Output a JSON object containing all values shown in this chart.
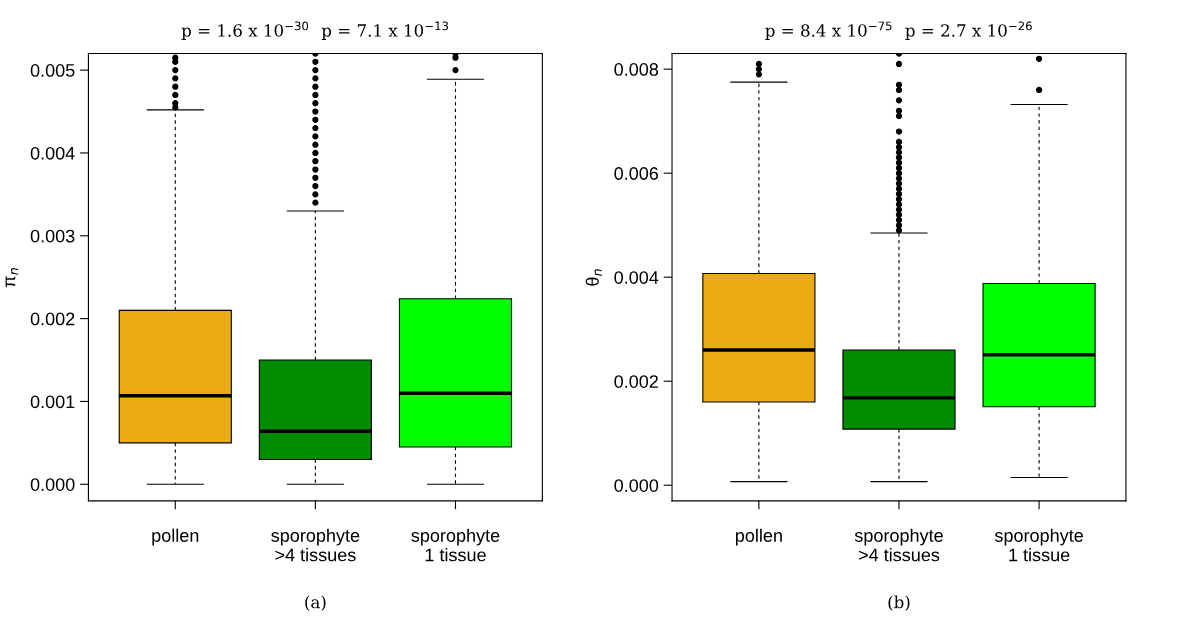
{
  "chart_data": [
    {
      "type": "box",
      "ylabel": "π$_{n}$",
      "xlabel": "(a)",
      "categories": [
        "pollen",
        "sporophyte\n>4 tissues",
        "sporophyte\n1 tissue"
      ],
      "colors": [
        "#ebab13",
        "#008b00",
        "#00ff00"
      ],
      "ylim": [
        -0.0002,
        0.0052
      ],
      "yticks": [
        {
          "value": 0,
          "label": "0.000"
        },
        {
          "value": 0.001,
          "label": "0.001"
        },
        {
          "value": 0.002,
          "label": "0.002"
        },
        {
          "value": 0.003,
          "label": "0.003"
        },
        {
          "value": 0.004,
          "label": "0.004"
        },
        {
          "value": 0.005,
          "label": "0.005"
        }
      ],
      "grid": false,
      "annotations": [
        "p = 1.6 x 10$^{−30}$",
        "p = 7.1 x 10$^{−13}$"
      ],
      "boxes": [
        {
          "low": 0,
          "q1": 0.0005,
          "median": 0.00107,
          "q3": 0.0021,
          "high": 0.00452,
          "outliers": [
            0.00455,
            0.0046,
            0.0047,
            0.0048,
            0.0049,
            0.005,
            0.0051,
            0.00515
          ]
        },
        {
          "low": 0,
          "q1": 0.0003,
          "median": 0.00064,
          "q3": 0.0015,
          "high": 0.0033,
          "outliers": [
            0.0034,
            0.0035,
            0.0036,
            0.0037,
            0.0038,
            0.0039,
            0.004,
            0.0041,
            0.0042,
            0.0043,
            0.0044,
            0.0045,
            0.0046,
            0.0047,
            0.0048,
            0.0049,
            0.005,
            0.0051,
            0.0052
          ]
        },
        {
          "low": 0,
          "q1": 0.00045,
          "median": 0.0011,
          "q3": 0.00224,
          "high": 0.00489,
          "outliers": [
            0.005,
            0.00515,
            0.0052
          ]
        }
      ]
    },
    {
      "type": "box",
      "ylabel": "θ$_{n}$",
      "xlabel": "(b)",
      "categories": [
        "pollen",
        "sporophyte\n>4 tissues",
        "sporophyte\n1 tissue"
      ],
      "colors": [
        "#ebab13",
        "#008b00",
        "#00ff00"
      ],
      "ylim": [
        -0.0003,
        0.0083
      ],
      "yticks": [
        {
          "value": 0,
          "label": "0.000"
        },
        {
          "value": 0.002,
          "label": "0.002"
        },
        {
          "value": 0.004,
          "label": "0.004"
        },
        {
          "value": 0.006,
          "label": "0.006"
        },
        {
          "value": 0.008,
          "label": "0.008"
        }
      ],
      "grid": false,
      "annotations": [
        "p = 8.4 x 10$^{−75}$",
        "p = 2.7 x 10$^{−26}$"
      ],
      "boxes": [
        {
          "low": 7e-05,
          "q1": 0.0016,
          "median": 0.0026,
          "q3": 0.00407,
          "high": 0.00775,
          "outliers": [
            0.0079,
            0.008,
            0.0081
          ]
        },
        {
          "low": 7e-05,
          "q1": 0.00108,
          "median": 0.00168,
          "q3": 0.0026,
          "high": 0.00485,
          "outliers": [
            0.0049,
            0.005,
            0.0051,
            0.0052,
            0.0053,
            0.0054,
            0.0055,
            0.0056,
            0.0057,
            0.0058,
            0.0059,
            0.006,
            0.0061,
            0.0062,
            0.0063,
            0.0064,
            0.0065,
            0.0066,
            0.0068,
            0.0071,
            0.0072,
            0.0074,
            0.0076,
            0.0077,
            0.0081,
            0.0083
          ]
        },
        {
          "low": 0.00015,
          "q1": 0.00151,
          "median": 0.00251,
          "q3": 0.00388,
          "high": 0.00732,
          "outliers": [
            0.0076,
            0.0082
          ]
        }
      ]
    }
  ]
}
